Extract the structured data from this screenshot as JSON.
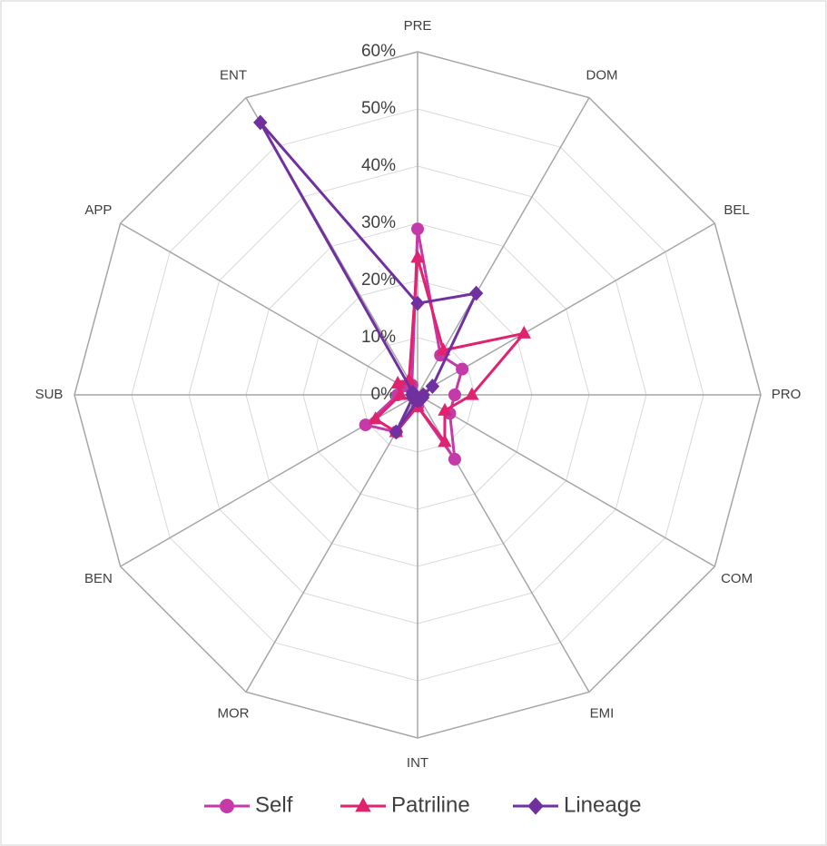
{
  "chart_data": {
    "type": "radar",
    "categories": [
      "PRE",
      "DOM",
      "BEL",
      "PRO",
      "COM",
      "EMI",
      "INT",
      "MOR",
      "BEN",
      "SUB",
      "APP",
      "ENT"
    ],
    "ylim": [
      0,
      60
    ],
    "yticks": [
      {
        "value": 0,
        "label": "0%"
      },
      {
        "value": 10,
        "label": "10%"
      },
      {
        "value": 20,
        "label": "20%"
      },
      {
        "value": 30,
        "label": "30%"
      },
      {
        "value": 40,
        "label": "40%"
      },
      {
        "value": 50,
        "label": "50%"
      },
      {
        "value": 60,
        "label": "60%"
      }
    ],
    "grid": true,
    "legend": "bottom",
    "series": [
      {
        "name": "Self",
        "color": "#c43aa8",
        "marker": "circle",
        "values": [
          29,
          8,
          9,
          6.5,
          6.5,
          13,
          2,
          7.5,
          10.5,
          3.5,
          3,
          2
        ]
      },
      {
        "name": "Patriline",
        "color": "#e0236e",
        "marker": "triangle",
        "values": [
          24,
          9,
          21.5,
          9.5,
          5.5,
          9.5,
          2,
          7.5,
          8.5,
          3,
          4,
          3
        ]
      },
      {
        "name": "Lineage",
        "color": "#7030a0",
        "marker": "diamond",
        "values": [
          16,
          20.5,
          3,
          1,
          1,
          1,
          1,
          7.5,
          1,
          1,
          1,
          55
        ]
      }
    ]
  }
}
